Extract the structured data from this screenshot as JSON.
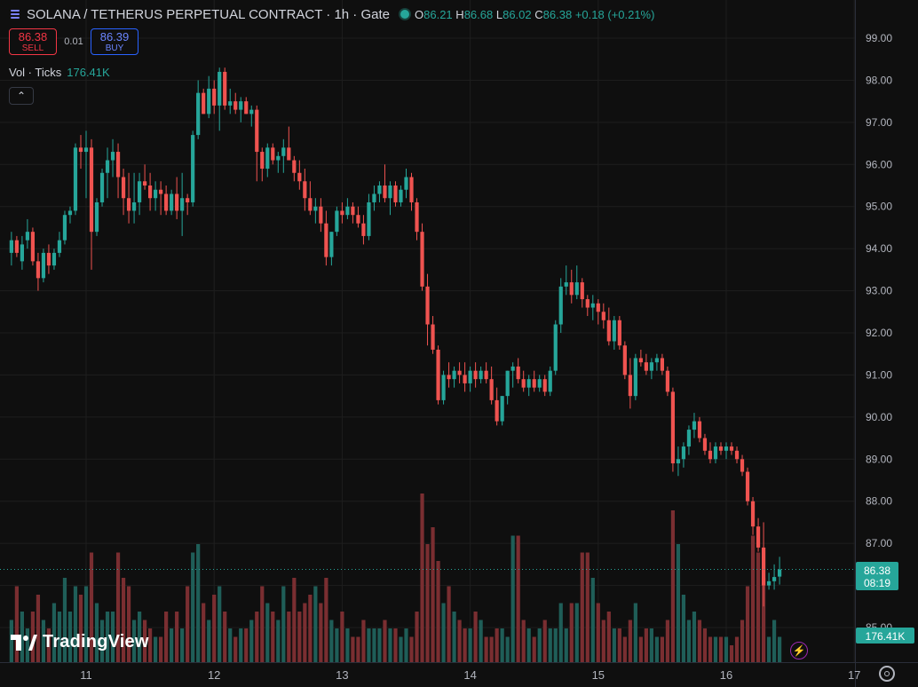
{
  "header": {
    "symbol_title": "SOLANA / TETHERUS PERPETUAL CONTRACT · 1h · Gate",
    "ohlc": {
      "o_label": "O",
      "o": "86.21",
      "h_label": "H",
      "h": "86.68",
      "l_label": "L",
      "l": "86.02",
      "c_label": "C",
      "c": "86.38",
      "change": "+0.18 (+0.21%)"
    }
  },
  "trade": {
    "sell_price": "86.38",
    "sell_label": "SELL",
    "spread": "0.01",
    "buy_price": "86.39",
    "buy_label": "BUY"
  },
  "volume_legend": {
    "label": "Vol · Ticks",
    "value": "176.41K"
  },
  "price_tag": {
    "price": "86.38",
    "countdown": "08:19"
  },
  "volume_tag": "176.41K",
  "logo": {
    "text": "TradingView"
  },
  "colors": {
    "up": "#26a69a",
    "down": "#ef5350",
    "background": "#0f0f0f",
    "grid": "#1e1e1e",
    "accent": "#2962ff"
  },
  "icons": [
    "symbol-icon",
    "status-dot-icon",
    "chevron-up-icon",
    "tradingview-logo-icon",
    "lightning-icon",
    "gear-icon"
  ],
  "chart_data": {
    "type": "candlestick",
    "title": "",
    "x_tick_labels": [
      "11",
      "12",
      "13",
      "14",
      "15",
      "16",
      "17"
    ],
    "y_tick_labels": [
      "85.00",
      "86.00",
      "87.00",
      "88.00",
      "89.00",
      "90.00",
      "91.00",
      "92.00",
      "93.00",
      "94.00",
      "95.00",
      "96.00",
      "97.00",
      "98.00",
      "99.00"
    ],
    "ylim": [
      84.6,
      99.3
    ],
    "candles_per_day": 24,
    "first_candle_hour_offset": -14,
    "current_price": 86.38,
    "grid": true,
    "ohlc": [
      [
        93.9,
        94.4,
        93.6,
        94.2
      ],
      [
        94.2,
        94.3,
        93.8,
        93.9
      ],
      [
        93.7,
        94.3,
        93.5,
        94.1
      ],
      [
        94.2,
        94.7,
        94.0,
        94.4
      ],
      [
        94.4,
        94.5,
        93.6,
        93.7
      ],
      [
        93.7,
        93.9,
        93.0,
        93.3
      ],
      [
        93.3,
        94.0,
        93.2,
        93.9
      ],
      [
        93.9,
        94.1,
        93.4,
        93.6
      ],
      [
        93.6,
        94.0,
        93.5,
        93.9
      ],
      [
        93.9,
        94.4,
        93.8,
        94.2
      ],
      [
        94.2,
        94.9,
        94.1,
        94.8
      ],
      [
        94.8,
        95.0,
        94.6,
        94.9
      ],
      [
        94.9,
        96.5,
        94.8,
        96.4
      ],
      [
        96.4,
        96.7,
        95.9,
        96.3
      ],
      [
        96.3,
        96.8,
        95.2,
        96.4
      ],
      [
        96.4,
        96.6,
        93.5,
        94.4
      ],
      [
        94.4,
        95.2,
        94.3,
        95.1
      ],
      [
        95.1,
        95.9,
        95.0,
        95.8
      ],
      [
        95.8,
        96.4,
        95.2,
        96.1
      ],
      [
        96.1,
        96.6,
        95.7,
        96.3
      ],
      [
        96.3,
        96.5,
        95.2,
        95.7
      ],
      [
        95.7,
        95.9,
        94.8,
        95.2
      ],
      [
        95.2,
        95.8,
        94.6,
        94.9
      ],
      [
        94.9,
        95.8,
        94.6,
        95.1
      ],
      [
        95.1,
        95.8,
        94.8,
        95.6
      ],
      [
        95.6,
        96.0,
        95.4,
        95.5
      ],
      [
        95.5,
        95.8,
        94.9,
        95.2
      ],
      [
        95.2,
        95.6,
        94.9,
        95.4
      ],
      [
        95.4,
        95.6,
        94.8,
        95.3
      ],
      [
        95.3,
        95.5,
        94.8,
        94.9
      ],
      [
        94.9,
        95.4,
        94.8,
        95.3
      ],
      [
        95.3,
        95.7,
        94.7,
        94.9
      ],
      [
        94.9,
        95.8,
        94.3,
        95.2
      ],
      [
        95.2,
        95.3,
        94.8,
        95.1
      ],
      [
        95.1,
        96.8,
        95.0,
        96.7
      ],
      [
        96.7,
        98.0,
        96.6,
        97.7
      ],
      [
        97.7,
        97.8,
        97.2,
        97.2
      ],
      [
        97.2,
        98.1,
        97.1,
        97.8
      ],
      [
        97.8,
        98.0,
        97.2,
        97.4
      ],
      [
        97.4,
        98.3,
        96.8,
        98.2
      ],
      [
        98.2,
        98.3,
        97.3,
        97.4
      ],
      [
        97.4,
        97.8,
        97.2,
        97.5
      ],
      [
        97.5,
        97.7,
        97.2,
        97.3
      ],
      [
        97.3,
        97.6,
        97.0,
        97.5
      ],
      [
        97.5,
        97.6,
        97.2,
        97.2
      ],
      [
        97.2,
        97.4,
        96.9,
        97.3
      ],
      [
        97.3,
        97.4,
        95.6,
        96.3
      ],
      [
        96.3,
        96.4,
        95.6,
        95.9
      ],
      [
        95.9,
        96.5,
        95.7,
        96.4
      ],
      [
        96.4,
        96.5,
        96.0,
        96.1
      ],
      [
        96.1,
        96.3,
        95.8,
        96.2
      ],
      [
        96.2,
        96.6,
        95.8,
        96.4
      ],
      [
        96.4,
        96.9,
        96.1,
        96.1
      ],
      [
        96.1,
        96.2,
        95.6,
        95.8
      ],
      [
        95.8,
        96.1,
        95.4,
        95.6
      ],
      [
        95.6,
        95.9,
        94.9,
        95.2
      ],
      [
        95.2,
        95.6,
        94.8,
        94.9
      ],
      [
        94.9,
        95.2,
        94.6,
        95.0
      ],
      [
        95.0,
        95.2,
        94.4,
        94.6
      ],
      [
        94.6,
        94.9,
        93.6,
        93.8
      ],
      [
        93.8,
        94.4,
        93.6,
        94.4
      ],
      [
        94.4,
        95.0,
        94.3,
        94.9
      ],
      [
        94.9,
        95.1,
        94.6,
        94.8
      ],
      [
        94.8,
        95.2,
        94.7,
        95.0
      ],
      [
        95.0,
        95.1,
        94.6,
        94.8
      ],
      [
        94.8,
        95.0,
        94.5,
        94.6
      ],
      [
        94.6,
        94.8,
        94.1,
        94.3
      ],
      [
        94.3,
        95.3,
        94.2,
        95.1
      ],
      [
        95.1,
        95.5,
        94.9,
        95.3
      ],
      [
        95.3,
        95.6,
        95.1,
        95.5
      ],
      [
        95.5,
        96.0,
        95.1,
        95.2
      ],
      [
        95.2,
        95.6,
        94.8,
        95.5
      ],
      [
        95.5,
        95.6,
        95.0,
        95.1
      ],
      [
        95.1,
        95.5,
        95.0,
        95.4
      ],
      [
        95.4,
        95.9,
        95.2,
        95.7
      ],
      [
        95.7,
        95.8,
        94.9,
        95.1
      ],
      [
        95.1,
        95.2,
        94.2,
        94.4
      ],
      [
        94.4,
        94.6,
        93.0,
        93.1
      ],
      [
        93.1,
        93.4,
        91.7,
        92.2
      ],
      [
        92.2,
        92.4,
        91.5,
        91.6
      ],
      [
        91.6,
        91.7,
        90.3,
        90.4
      ],
      [
        90.4,
        91.1,
        90.3,
        91.0
      ],
      [
        91.0,
        91.3,
        90.7,
        90.9
      ],
      [
        90.9,
        91.2,
        90.7,
        91.1
      ],
      [
        91.1,
        91.3,
        90.8,
        91.0
      ],
      [
        91.0,
        91.3,
        90.6,
        90.8
      ],
      [
        90.8,
        91.2,
        90.6,
        91.1
      ],
      [
        91.1,
        91.3,
        90.7,
        90.9
      ],
      [
        90.9,
        91.2,
        90.8,
        91.1
      ],
      [
        91.1,
        91.3,
        90.8,
        90.9
      ],
      [
        90.9,
        91.2,
        90.3,
        90.4
      ],
      [
        90.4,
        90.7,
        89.8,
        89.9
      ],
      [
        89.9,
        90.5,
        89.8,
        90.5
      ],
      [
        90.5,
        91.1,
        90.3,
        91.1
      ],
      [
        91.1,
        91.3,
        90.7,
        91.2
      ],
      [
        91.2,
        91.4,
        90.8,
        90.9
      ],
      [
        90.9,
        91.1,
        90.6,
        90.7
      ],
      [
        90.7,
        91.0,
        90.5,
        90.9
      ],
      [
        90.9,
        91.1,
        90.6,
        90.7
      ],
      [
        90.7,
        91.0,
        90.6,
        90.9
      ],
      [
        90.9,
        91.0,
        90.5,
        90.6
      ],
      [
        90.6,
        91.2,
        90.5,
        91.1
      ],
      [
        91.1,
        92.3,
        91.0,
        92.2
      ],
      [
        92.2,
        93.3,
        92.0,
        93.1
      ],
      [
        93.1,
        93.6,
        92.9,
        93.2
      ],
      [
        93.2,
        93.5,
        92.7,
        92.9
      ],
      [
        92.9,
        93.6,
        92.8,
        93.2
      ],
      [
        93.2,
        93.3,
        92.6,
        92.8
      ],
      [
        92.8,
        92.9,
        92.4,
        92.6
      ],
      [
        92.6,
        92.9,
        92.3,
        92.7
      ],
      [
        92.7,
        92.8,
        92.2,
        92.5
      ],
      [
        92.5,
        92.7,
        92.1,
        92.3
      ],
      [
        92.3,
        92.6,
        91.7,
        91.8
      ],
      [
        91.8,
        92.4,
        91.6,
        92.3
      ],
      [
        92.3,
        92.4,
        91.6,
        91.7
      ],
      [
        91.7,
        91.8,
        90.9,
        91.0
      ],
      [
        91.0,
        91.4,
        90.2,
        90.5
      ],
      [
        90.5,
        91.5,
        90.4,
        91.4
      ],
      [
        91.4,
        91.6,
        91.2,
        91.3
      ],
      [
        91.3,
        91.5,
        91.0,
        91.1
      ],
      [
        91.1,
        91.4,
        90.9,
        91.3
      ],
      [
        91.3,
        91.5,
        91.1,
        91.4
      ],
      [
        91.4,
        91.5,
        91.0,
        91.1
      ],
      [
        91.1,
        91.2,
        90.5,
        90.6
      ],
      [
        90.6,
        90.7,
        88.7,
        88.9
      ],
      [
        88.9,
        89.3,
        88.6,
        89.0
      ],
      [
        89.0,
        89.4,
        88.8,
        89.3
      ],
      [
        89.3,
        89.8,
        89.1,
        89.7
      ],
      [
        89.7,
        90.1,
        89.5,
        89.9
      ],
      [
        89.9,
        90.0,
        89.4,
        89.5
      ],
      [
        89.5,
        89.6,
        89.1,
        89.2
      ],
      [
        89.2,
        89.4,
        88.9,
        89.0
      ],
      [
        89.0,
        89.4,
        88.9,
        89.3
      ],
      [
        89.3,
        89.4,
        89.1,
        89.2
      ],
      [
        89.2,
        89.4,
        89.0,
        89.3
      ],
      [
        89.3,
        89.4,
        89.1,
        89.2
      ],
      [
        89.2,
        89.3,
        88.9,
        89.0
      ],
      [
        89.0,
        89.1,
        88.6,
        88.7
      ],
      [
        88.7,
        88.8,
        87.9,
        88.0
      ],
      [
        88.0,
        88.1,
        87.2,
        87.4
      ],
      [
        87.4,
        87.6,
        86.8,
        86.9
      ],
      [
        86.9,
        87.5,
        85.5,
        86.0
      ],
      [
        86.0,
        86.3,
        85.9,
        86.1
      ],
      [
        86.1,
        86.5,
        85.9,
        86.2
      ],
      [
        86.21,
        86.68,
        86.02,
        86.38
      ]
    ],
    "volume": [
      0.5,
      0.9,
      0.6,
      0.4,
      0.6,
      0.8,
      0.5,
      0.4,
      0.7,
      0.6,
      1.0,
      0.6,
      0.9,
      0.8,
      0.9,
      1.3,
      0.7,
      0.5,
      0.6,
      0.6,
      1.3,
      1.0,
      0.9,
      0.5,
      0.6,
      0.5,
      0.4,
      0.3,
      0.3,
      0.6,
      0.4,
      0.6,
      0.4,
      0.9,
      1.3,
      1.4,
      0.7,
      0.5,
      0.8,
      0.9,
      0.6,
      0.4,
      0.3,
      0.4,
      0.4,
      0.5,
      0.6,
      0.9,
      0.7,
      0.6,
      0.5,
      0.9,
      0.6,
      1.0,
      0.6,
      0.7,
      0.8,
      0.9,
      0.7,
      1.0,
      0.5,
      0.4,
      0.6,
      0.4,
      0.3,
      0.3,
      0.5,
      0.4,
      0.4,
      0.4,
      0.5,
      0.4,
      0.4,
      0.3,
      0.4,
      0.3,
      0.6,
      2.0,
      1.4,
      1.6,
      1.2,
      0.7,
      0.9,
      0.6,
      0.5,
      0.4,
      0.4,
      0.6,
      0.5,
      0.3,
      0.3,
      0.4,
      0.4,
      0.3,
      1.5,
      1.5,
      0.5,
      0.4,
      0.3,
      0.4,
      0.5,
      0.4,
      0.4,
      0.7,
      0.4,
      0.7,
      0.7,
      1.3,
      1.3,
      1.0,
      0.7,
      0.5,
      0.6,
      0.4,
      0.4,
      0.3,
      0.5,
      0.7,
      0.3,
      0.4,
      0.4,
      0.3,
      0.3,
      0.5,
      1.8,
      1.4,
      0.8,
      0.5,
      0.6,
      0.5,
      0.4,
      0.3,
      0.3,
      0.3,
      0.3,
      0.2,
      0.3,
      0.5,
      0.9,
      1.5,
      1.3,
      1.0,
      0.3,
      0.5,
      0.3
    ]
  }
}
